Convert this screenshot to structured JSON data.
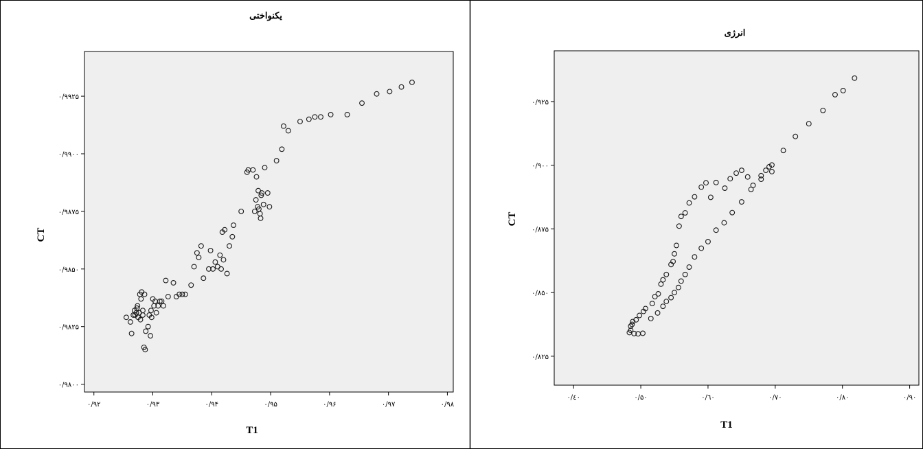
{
  "chart_data": [
    {
      "type": "scatter",
      "title": "یکنواختی",
      "xlabel": "T1",
      "ylabel": "CT",
      "xlim": [
        0.9184,
        0.981
      ],
      "ylim": [
        0.97966,
        0.99444
      ],
      "x_ticks": [
        0.92,
        0.93,
        0.94,
        0.95,
        0.96,
        0.97,
        0.98
      ],
      "x_tick_labels": [
        "۰/۹۲",
        "۰/۹۳",
        "۰/۹۴",
        "۰/۹۵",
        "۰/۹۶",
        "۰/۹۷",
        "۰/۹۸"
      ],
      "y_ticks": [
        0.98,
        0.9825,
        0.985,
        0.9875,
        0.99,
        0.9925
      ],
      "y_tick_labels": [
        "۰/۹۸۰۰",
        "۰/۹۸۲۵",
        "۰/۹۸۵۰",
        "۰/۹۸۷۵",
        "۰/۹۹۰۰",
        "۰/۹۹۲۵"
      ],
      "grid": false,
      "points": [
        [
          0.9255,
          0.9829
        ],
        [
          0.9262,
          0.9827
        ],
        [
          0.9264,
          0.9822
        ],
        [
          0.9267,
          0.983
        ],
        [
          0.9269,
          0.9832
        ],
        [
          0.927,
          0.983
        ],
        [
          0.9272,
          0.9831
        ],
        [
          0.9273,
          0.9833
        ],
        [
          0.9274,
          0.9834
        ],
        [
          0.9275,
          0.9829
        ],
        [
          0.9277,
          0.9831
        ],
        [
          0.9278,
          0.9839
        ],
        [
          0.9279,
          0.9828
        ],
        [
          0.928,
          0.9837
        ],
        [
          0.9281,
          0.984
        ],
        [
          0.9283,
          0.9832
        ],
        [
          0.9283,
          0.983
        ],
        [
          0.9285,
          0.9816
        ],
        [
          0.9286,
          0.9839
        ],
        [
          0.9287,
          0.9815
        ],
        [
          0.9288,
          0.9823
        ],
        [
          0.9292,
          0.9825
        ],
        [
          0.9294,
          0.983
        ],
        [
          0.9296,
          0.9821
        ],
        [
          0.9297,
          0.9832
        ],
        [
          0.9298,
          0.9829
        ],
        [
          0.93,
          0.9837
        ],
        [
          0.9302,
          0.9834
        ],
        [
          0.9304,
          0.9836
        ],
        [
          0.9306,
          0.9831
        ],
        [
          0.9309,
          0.9834
        ],
        [
          0.9312,
          0.9836
        ],
        [
          0.9315,
          0.9836
        ],
        [
          0.9318,
          0.9834
        ],
        [
          0.9322,
          0.9845
        ],
        [
          0.9326,
          0.9838
        ],
        [
          0.9335,
          0.9844
        ],
        [
          0.934,
          0.9838
        ],
        [
          0.9345,
          0.9839
        ],
        [
          0.935,
          0.9839
        ],
        [
          0.9355,
          0.9839
        ],
        [
          0.9365,
          0.9843
        ],
        [
          0.937,
          0.9851
        ],
        [
          0.9375,
          0.9857
        ],
        [
          0.9378,
          0.9855
        ],
        [
          0.9382,
          0.986
        ],
        [
          0.9386,
          0.9846
        ],
        [
          0.9395,
          0.985
        ],
        [
          0.9398,
          0.9858
        ],
        [
          0.9402,
          0.985
        ],
        [
          0.9406,
          0.9853
        ],
        [
          0.941,
          0.9851
        ],
        [
          0.9414,
          0.9856
        ],
        [
          0.9416,
          0.985
        ],
        [
          0.9418,
          0.9866
        ],
        [
          0.942,
          0.9854
        ],
        [
          0.9422,
          0.9867
        ],
        [
          0.9426,
          0.9848
        ],
        [
          0.943,
          0.986
        ],
        [
          0.9435,
          0.9864
        ],
        [
          0.9437,
          0.9869
        ],
        [
          0.945,
          0.9875
        ],
        [
          0.946,
          0.9892
        ],
        [
          0.9462,
          0.9893
        ],
        [
          0.947,
          0.9893
        ],
        [
          0.9473,
          0.9875
        ],
        [
          0.9475,
          0.988
        ],
        [
          0.9476,
          0.989
        ],
        [
          0.9478,
          0.9877
        ],
        [
          0.9479,
          0.9884
        ],
        [
          0.948,
          0.9876
        ],
        [
          0.9482,
          0.9874
        ],
        [
          0.9483,
          0.9872
        ],
        [
          0.9484,
          0.9882
        ],
        [
          0.9485,
          0.9883
        ],
        [
          0.9488,
          0.9878
        ],
        [
          0.949,
          0.9894
        ],
        [
          0.9495,
          0.9883
        ],
        [
          0.9498,
          0.9877
        ],
        [
          0.951,
          0.9897
        ],
        [
          0.9519,
          0.9902
        ],
        [
          0.9522,
          0.9912
        ],
        [
          0.953,
          0.991
        ],
        [
          0.955,
          0.9914
        ],
        [
          0.9565,
          0.9915
        ],
        [
          0.9575,
          0.9916
        ],
        [
          0.9585,
          0.9916
        ],
        [
          0.9602,
          0.9917
        ],
        [
          0.963,
          0.9917
        ],
        [
          0.9655,
          0.9922
        ],
        [
          0.968,
          0.9926
        ],
        [
          0.9702,
          0.9927
        ],
        [
          0.9722,
          0.9929
        ],
        [
          0.974,
          0.9931
        ]
      ]
    },
    {
      "type": "scatter",
      "title": "انرژی",
      "xlabel": "T1",
      "ylabel": "CT",
      "xlim": [
        0.3712,
        0.9137
      ],
      "ylim": [
        0.81364,
        0.94493
      ],
      "x_ticks": [
        0.4,
        0.5,
        0.6,
        0.7,
        0.8,
        0.9
      ],
      "x_tick_labels": [
        "۰/٤۰",
        "۰/۵۰",
        "۰/٦۰",
        "۰/۷۰",
        "۰/۸۰",
        "۰/۹۰"
      ],
      "y_ticks": [
        0.825,
        0.85,
        0.875,
        0.9,
        0.925
      ],
      "y_tick_labels": [
        "۰/۸۲۵",
        "۰/۸۵۰",
        "۰/۸۷۵",
        "۰/۹۰۰",
        "۰/۹۲۵"
      ],
      "grid": false,
      "points": [
        [
          0.485,
          0.8368
        ],
        [
          0.488,
          0.8386
        ],
        [
          0.493,
          0.8393
        ],
        [
          0.498,
          0.841
        ],
        [
          0.504,
          0.8426
        ],
        [
          0.507,
          0.8437
        ],
        [
          0.517,
          0.8457
        ],
        [
          0.521,
          0.8484
        ],
        [
          0.526,
          0.8495
        ],
        [
          0.53,
          0.8533
        ],
        [
          0.533,
          0.855
        ],
        [
          0.538,
          0.8571
        ],
        [
          0.545,
          0.861
        ],
        [
          0.548,
          0.8622
        ],
        [
          0.55,
          0.8652
        ],
        [
          0.553,
          0.8685
        ],
        [
          0.557,
          0.8761
        ],
        [
          0.56,
          0.8799
        ],
        [
          0.566,
          0.8813
        ],
        [
          0.572,
          0.8852
        ],
        [
          0.58,
          0.8876
        ],
        [
          0.59,
          0.8914
        ],
        [
          0.597,
          0.8931
        ],
        [
          0.604,
          0.8874
        ],
        [
          0.612,
          0.8932
        ],
        [
          0.625,
          0.891
        ],
        [
          0.633,
          0.8947
        ],
        [
          0.642,
          0.8969
        ],
        [
          0.65,
          0.898
        ],
        [
          0.659,
          0.8954
        ],
        [
          0.667,
          0.8921
        ],
        [
          0.679,
          0.8959
        ],
        [
          0.686,
          0.898
        ],
        [
          0.691,
          0.8994
        ],
        [
          0.695,
          0.8975
        ],
        [
          0.483,
          0.8343
        ],
        [
          0.485,
          0.8352
        ],
        [
          0.487,
          0.8375
        ],
        [
          0.49,
          0.8339
        ],
        [
          0.496,
          0.8338
        ],
        [
          0.503,
          0.834
        ],
        [
          0.515,
          0.8398
        ],
        [
          0.525,
          0.842
        ],
        [
          0.533,
          0.8446
        ],
        [
          0.538,
          0.8465
        ],
        [
          0.545,
          0.848
        ],
        [
          0.55,
          0.85
        ],
        [
          0.556,
          0.852
        ],
        [
          0.56,
          0.8545
        ],
        [
          0.566,
          0.8571
        ],
        [
          0.572,
          0.86
        ],
        [
          0.58,
          0.864
        ],
        [
          0.59,
          0.8674
        ],
        [
          0.6,
          0.87
        ],
        [
          0.612,
          0.8745
        ],
        [
          0.624,
          0.8774
        ],
        [
          0.636,
          0.8814
        ],
        [
          0.65,
          0.8856
        ],
        [
          0.664,
          0.8905
        ],
        [
          0.679,
          0.8945
        ],
        [
          0.695,
          0.9001
        ],
        [
          0.712,
          0.9058
        ],
        [
          0.73,
          0.9113
        ],
        [
          0.75,
          0.9163
        ],
        [
          0.771,
          0.9215
        ],
        [
          0.789,
          0.9277
        ],
        [
          0.801,
          0.9293
        ],
        [
          0.818,
          0.9342
        ]
      ]
    }
  ]
}
